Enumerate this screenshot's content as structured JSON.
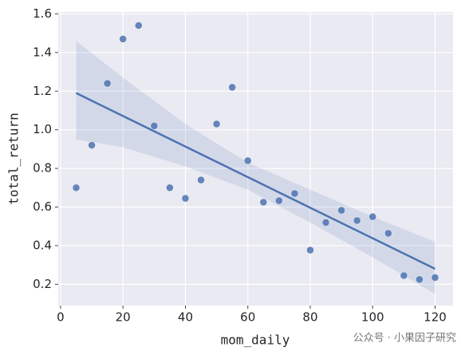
{
  "chart_data": {
    "type": "scatter",
    "xlabel": "mom_daily",
    "ylabel": "total_return",
    "annotation": "公众号 · 小果因子研究",
    "x": [
      5,
      10,
      15,
      20,
      25,
      30,
      35,
      40,
      45,
      50,
      55,
      60,
      65,
      70,
      75,
      80,
      85,
      90,
      95,
      100,
      105,
      110,
      115,
      120
    ],
    "values": [
      0.7,
      0.92,
      1.24,
      1.47,
      1.54,
      1.02,
      0.7,
      0.645,
      0.74,
      1.03,
      1.22,
      0.84,
      0.625,
      0.633,
      0.67,
      0.377,
      0.52,
      0.583,
      0.53,
      0.55,
      0.464,
      0.245,
      0.225,
      0.235
    ],
    "color": "#4c72b0",
    "fit": {
      "x": [
        5,
        120
      ],
      "values": [
        1.19,
        0.28
      ]
    },
    "ci_band": {
      "x": [
        5,
        20,
        40,
        60,
        80,
        100,
        120
      ],
      "upper": [
        1.46,
        1.27,
        1.03,
        0.83,
        0.69,
        0.55,
        0.42
      ],
      "lower": [
        0.95,
        0.91,
        0.81,
        0.69,
        0.52,
        0.34,
        0.15
      ]
    },
    "xlim": [
      -0.75,
      125.75
    ],
    "ylim": [
      0.09,
      1.61
    ],
    "xticks": [
      0,
      20,
      40,
      60,
      80,
      100,
      120
    ],
    "yticks": [
      0.2,
      0.4,
      0.6,
      0.8,
      {
        "value": 1,
        "label": "1.0"
      },
      1.2,
      1.4,
      1.6
    ],
    "grid": true
  }
}
